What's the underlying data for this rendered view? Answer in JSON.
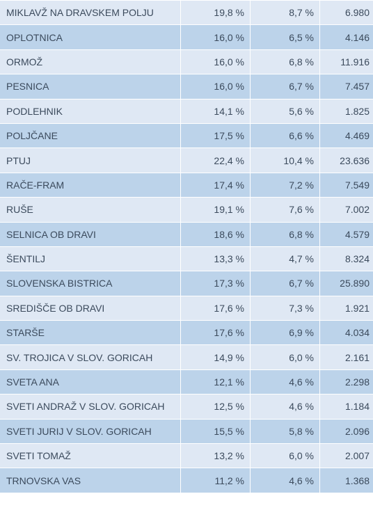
{
  "colors": {
    "row_light": "#dfe8f4",
    "row_dark": "#bcd3ea",
    "text": "#3b4a5c"
  },
  "rows": [
    {
      "name": "MIKLAVŽ NA DRAVSKEM POLJU",
      "pct1": "19,8 %",
      "pct2": "8,7 %",
      "count": "6.980"
    },
    {
      "name": "OPLOTNICA",
      "pct1": "16,0 %",
      "pct2": "6,5 %",
      "count": "4.146"
    },
    {
      "name": "ORMOŽ",
      "pct1": "16,0 %",
      "pct2": "6,8 %",
      "count": "11.916"
    },
    {
      "name": "PESNICA",
      "pct1": "16,0 %",
      "pct2": "6,7 %",
      "count": "7.457"
    },
    {
      "name": "PODLEHNIK",
      "pct1": "14,1 %",
      "pct2": "5,6 %",
      "count": "1.825"
    },
    {
      "name": "POLJČANE",
      "pct1": "17,5 %",
      "pct2": "6,6 %",
      "count": "4.469"
    },
    {
      "name": "PTUJ",
      "pct1": "22,4 %",
      "pct2": "10,4 %",
      "count": "23.636"
    },
    {
      "name": "RAČE-FRAM",
      "pct1": "17,4 %",
      "pct2": "7,2 %",
      "count": "7.549"
    },
    {
      "name": "RUŠE",
      "pct1": "19,1 %",
      "pct2": "7,6 %",
      "count": "7.002"
    },
    {
      "name": "SELNICA OB DRAVI",
      "pct1": "18,6 %",
      "pct2": "6,8 %",
      "count": "4.579"
    },
    {
      "name": "ŠENTILJ",
      "pct1": "13,3 %",
      "pct2": "4,7 %",
      "count": "8.324"
    },
    {
      "name": "SLOVENSKA BISTRICA",
      "pct1": "17,3 %",
      "pct2": "6,7 %",
      "count": "25.890"
    },
    {
      "name": "SREDIŠČE OB DRAVI",
      "pct1": "17,6 %",
      "pct2": "7,3 %",
      "count": "1.921"
    },
    {
      "name": "STARŠE",
      "pct1": "17,6 %",
      "pct2": "6,9 %",
      "count": "4.034"
    },
    {
      "name": "SV. TROJICA V SLOV. GORICAH",
      "pct1": "14,9 %",
      "pct2": "6,0 %",
      "count": "2.161"
    },
    {
      "name": "SVETA ANA",
      "pct1": "12,1 %",
      "pct2": "4,6 %",
      "count": "2.298"
    },
    {
      "name": "SVETI ANDRAŽ V SLOV. GORICAH",
      "pct1": "12,5 %",
      "pct2": "4,6 %",
      "count": "1.184"
    },
    {
      "name": "SVETI JURIJ V SLOV. GORICAH",
      "pct1": "15,5 %",
      "pct2": "5,8 %",
      "count": "2.096"
    },
    {
      "name": "SVETI TOMAŽ",
      "pct1": "13,2 %",
      "pct2": "6,0 %",
      "count": "2.007"
    },
    {
      "name": "TRNOVSKA VAS",
      "pct1": "11,2 %",
      "pct2": "4,6 %",
      "count": "1.368"
    }
  ]
}
